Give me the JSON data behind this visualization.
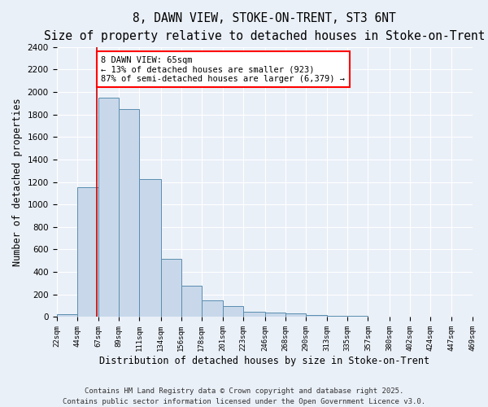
{
  "title1": "8, DAWN VIEW, STOKE-ON-TRENT, ST3 6NT",
  "title2": "Size of property relative to detached houses in Stoke-on-Trent",
  "xlabel": "Distribution of detached houses by size in Stoke-on-Trent",
  "ylabel": "Number of detached properties",
  "bin_edges": [
    22,
    44,
    67,
    89,
    111,
    134,
    156,
    178,
    201,
    223,
    246,
    268,
    290,
    313,
    335,
    357,
    380,
    402,
    424,
    447,
    469
  ],
  "bar_heights": [
    25,
    1150,
    1950,
    1850,
    1225,
    520,
    275,
    150,
    95,
    45,
    40,
    35,
    20,
    10,
    8,
    5,
    3,
    2,
    2,
    1
  ],
  "bar_color": "#c8d8ea",
  "bar_edge_color": "#5a8db0",
  "bar_edge_width": 0.7,
  "red_line_x": 65,
  "red_line_color": "#cc0000",
  "ylim": [
    0,
    2400
  ],
  "yticks": [
    0,
    200,
    400,
    600,
    800,
    1000,
    1200,
    1400,
    1600,
    1800,
    2000,
    2200,
    2400
  ],
  "annotation_text": "8 DAWN VIEW: 65sqm\n← 13% of detached houses are smaller (923)\n87% of semi-detached houses are larger (6,379) →",
  "background_color": "#eaf0f8",
  "grid_color": "#ffffff",
  "title1_fontsize": 10.5,
  "title2_fontsize": 9.5,
  "xlabel_fontsize": 8.5,
  "ylabel_fontsize": 8.5,
  "annotation_fontsize": 7.5,
  "tick_fontsize": 6.5,
  "ytick_fontsize": 7.5,
  "footer1": "Contains HM Land Registry data © Crown copyright and database right 2025.",
  "footer2": "Contains public sector information licensed under the Open Government Licence v3.0.",
  "footer_fontsize": 6.5
}
